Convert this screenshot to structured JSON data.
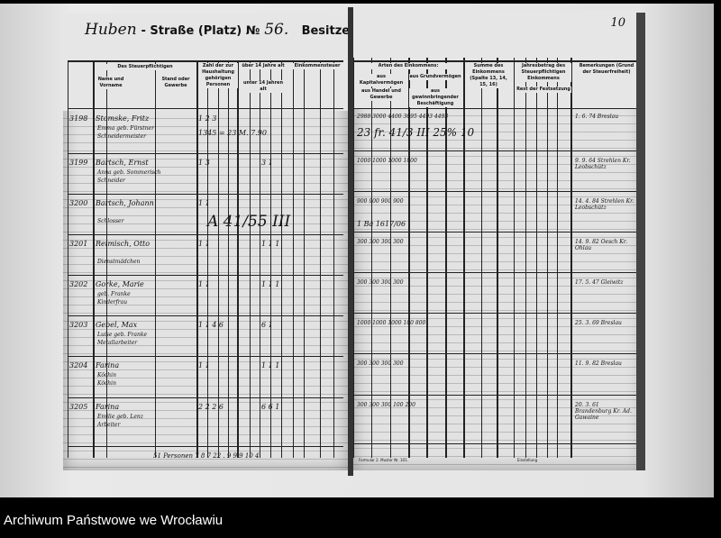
{
  "document": {
    "street_handwritten": "Huben",
    "street_label": "- Straße (Platz) №",
    "house_number": "56.",
    "owner_label": "Besitzer:",
    "page_number": "10",
    "left_headers": [
      "Des Steuerpflichtigen",
      "Name und Vorname",
      "Stand oder Gewerbe",
      "Zahl der zur Haushaltung gehörigen Personen",
      "über 14 Jahre alt",
      "unter 14 Jahren alt",
      "Einkommensteuer"
    ],
    "right_headers": [
      "Arten des Einkommens:",
      "aus Kapitalvermögen",
      "aus Grundvermögen",
      "aus Handel und Gewerbe",
      "aus gewinnbringender Beschäftigung",
      "Summe des Einkommens (Spalte 13, 14, 15, 16)",
      "Jahresbetrag des Steuerpflichtigen Einkommens",
      "Rest der Festsetzung",
      "Bemerkungen (Grund der Steuerfreiheit)"
    ],
    "rows": [
      {
        "no": "3198",
        "name": "Stomske, Fritz",
        "sub": "Emma geb. Fürstner",
        "trade": "Schneidermeister",
        "counts": "1 2 3",
        "mark": "1345 = 23 M. 7.90",
        "amounts": "2988   3000   4400   3095   4493   4493",
        "remark": "1. 6. 74 Breslau",
        "note": "23 fr. 41/3 III 25% 10"
      },
      {
        "no": "3199",
        "name": "Bartsch, Ernst",
        "sub": "Anna geb. Sommerisch",
        "trade": "Schneider",
        "counts": "1 3",
        "mark": "3 1",
        "amounts": "1000   1000   1000   1000",
        "remark": "9. 9. 64 Strehlen Kr. Leobschütz"
      },
      {
        "no": "3200",
        "name": "Bartsch, Johann",
        "sub": "",
        "trade": "Schlosser",
        "counts": "1 1",
        "mark": "A 41/55 III",
        "amounts": "900   900   900   900",
        "remark": "14. 4. 84 Strehlen Kr. Leobschütz",
        "note": "1 Ba 1617/06"
      },
      {
        "no": "3201",
        "name": "Reimisch, Otto",
        "sub": "",
        "trade": "Dienstmädchen",
        "counts": "1 1",
        "mark": "1 1 1",
        "amounts": "300   300   300   300",
        "remark": "14. 9. 82 Oesch Kr. Ohlau"
      },
      {
        "no": "3202",
        "name": "Gorke, Marie",
        "sub": "geb. Franke",
        "trade": "Kinderfrau",
        "counts": "1 1",
        "mark": "1 1 1",
        "amounts": "300   300   300   300",
        "remark": "17. 5. 47 Gleiwitz"
      },
      {
        "no": "3203",
        "name": "Gebel, Max",
        "sub": "Luise geb. Franke",
        "trade": "Metallarbeiter",
        "counts": "1 1 4 6",
        "mark": "6 1",
        "amounts": "1000   1000   1000   100   800",
        "remark": "25. 3. 69 Breslau"
      },
      {
        "no": "3204",
        "name": "Farina",
        "sub": "Köchin",
        "trade": "Köchin",
        "counts": "1 1",
        "mark": "1 1 1",
        "amounts": "300   300   300   300",
        "remark": "11. 9. 82 Breslau"
      },
      {
        "no": "3205",
        "name": "Farina",
        "sub": "Emilie geb. Lenz",
        "trade": "Arbeiter",
        "counts": "2 2 2 6",
        "mark": "6 6 1",
        "amounts": "300   300   300   100   200",
        "remark": "20. 3. 61 Brandenburg Kr. Ad. Gawaine"
      }
    ],
    "totals": "51 Personen  7 8 7 22 . 9 9 9 10 4",
    "form_footer": "Formular 2. Muster Nr. 101.",
    "right_footer": "Einstellung"
  },
  "caption": "Archiwum Państwowe we Wrocławiu"
}
